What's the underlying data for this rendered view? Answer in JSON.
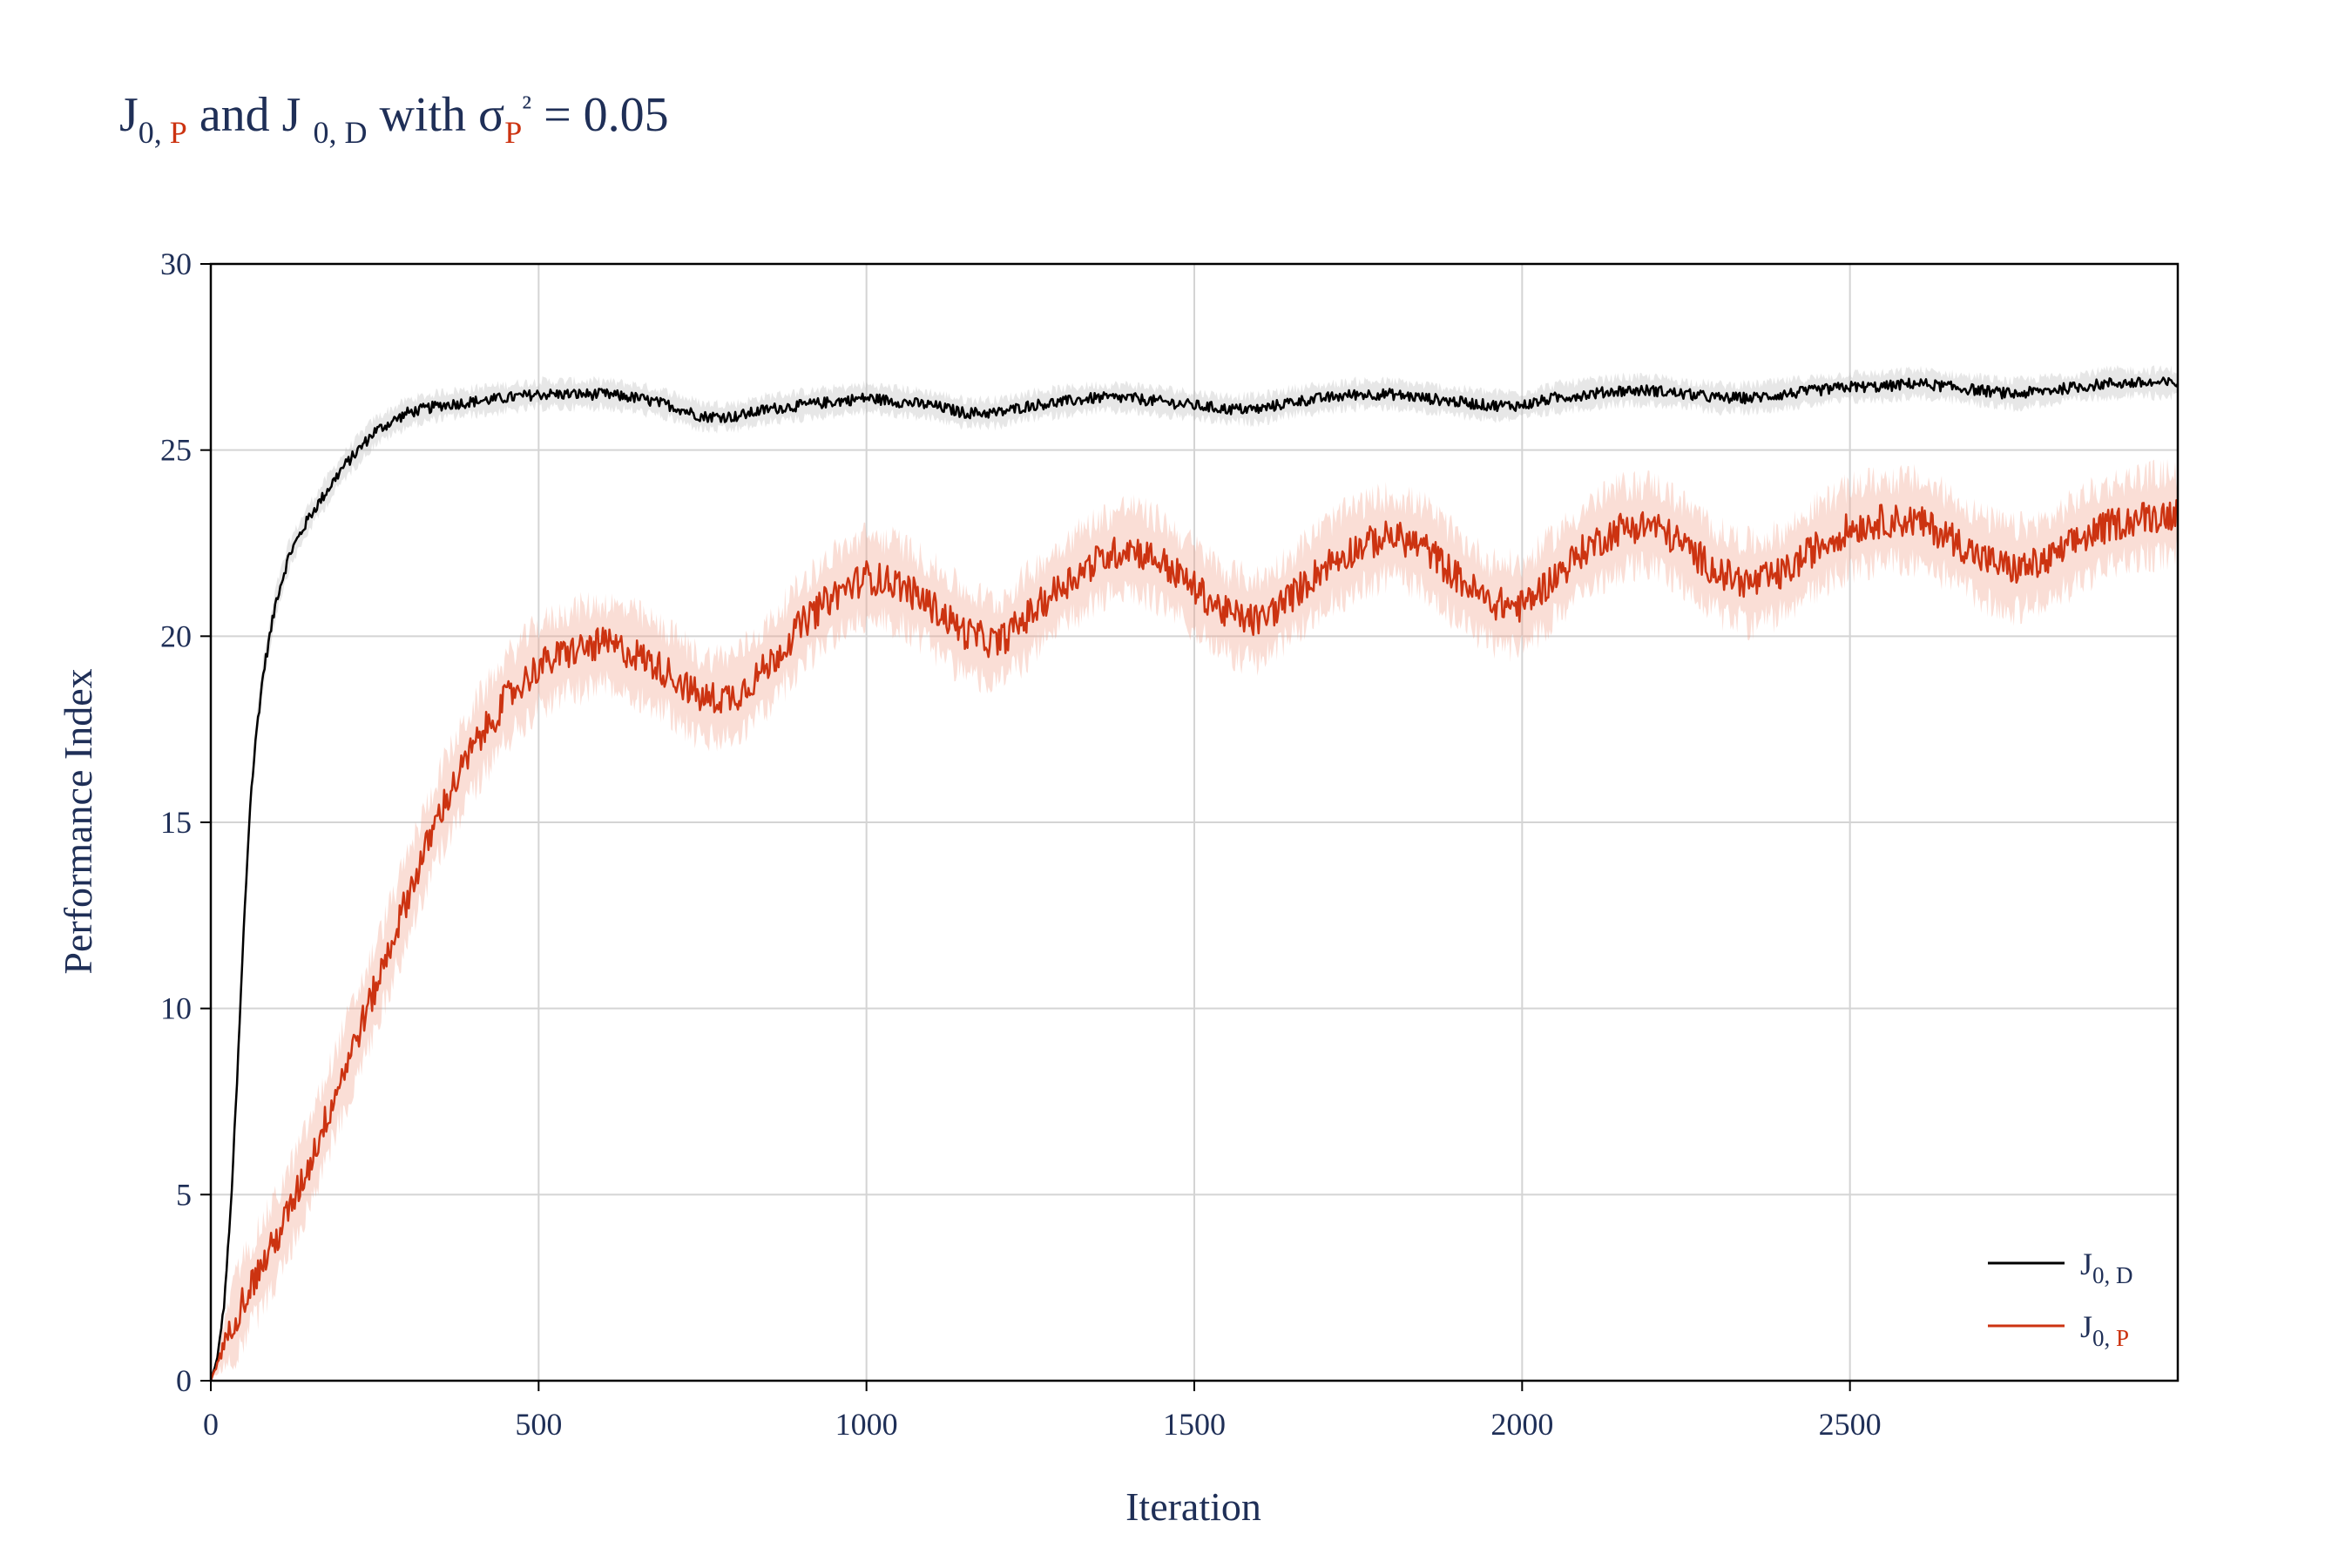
{
  "chart_data": {
    "type": "line",
    "title": {
      "parts": [
        {
          "text": "J",
          "sub": "0, ",
          "sub2": "P",
          "sub2_color": "#cc3311"
        },
        {
          "text": " and J ",
          "sub": "0, D",
          "sub2": "",
          "sub2_color": ""
        },
        {
          "text": "  with σ",
          "sub": "P",
          "sub_color": "#cc3311",
          "sup": "2"
        },
        {
          "text": " = 0.05"
        }
      ],
      "t1": "J",
      "t1_sub": "0, ",
      "t1_sub_p": "P",
      "t2": " and J ",
      "t2_sub": "0, D",
      "t3": "  with σ",
      "t3_sub": "P",
      "t3_sup": "²",
      "t4": " = 0.05"
    },
    "xlabel": "Iteration",
    "ylabel": "Performance Index",
    "xlim": [
      0,
      3000
    ],
    "ylim": [
      0,
      30
    ],
    "x_ticks": [
      0,
      500,
      1000,
      1500,
      2000,
      2500
    ],
    "y_ticks": [
      0,
      5,
      10,
      15,
      20,
      25,
      30
    ],
    "grid": true,
    "legend_position": "bottom-right",
    "series": [
      {
        "name": "J_{0, D}",
        "legend_main": "J",
        "legend_sub_a": "0, D",
        "legend_sub_b": "",
        "color": "#000000",
        "band_color": "#bbbbbb",
        "x": [
          0,
          10,
          20,
          30,
          40,
          50,
          60,
          70,
          80,
          100,
          120,
          150,
          200,
          250,
          300,
          350,
          400,
          450,
          500,
          550,
          600,
          650,
          700,
          750,
          800,
          850,
          900,
          950,
          1000,
          1050,
          1100,
          1150,
          1200,
          1250,
          1300,
          1350,
          1400,
          1450,
          1500,
          1550,
          1600,
          1650,
          1700,
          1750,
          1800,
          1850,
          1900,
          1950,
          2000,
          2050,
          2100,
          2150,
          2200,
          2250,
          2300,
          2350,
          2400,
          2450,
          2500,
          2550,
          2600,
          2650,
          2700,
          2750,
          2800,
          2850,
          2900,
          2950,
          3000
        ],
        "values": [
          0,
          0.6,
          2.0,
          4.5,
          8.0,
          12.0,
          15.5,
          17.5,
          19.0,
          21.0,
          22.2,
          23.2,
          24.5,
          25.5,
          26.0,
          26.2,
          26.3,
          26.4,
          26.5,
          26.5,
          26.5,
          26.4,
          26.2,
          25.9,
          25.9,
          26.1,
          26.2,
          26.3,
          26.4,
          26.3,
          26.2,
          26.0,
          26.0,
          26.2,
          26.3,
          26.4,
          26.4,
          26.3,
          26.2,
          26.1,
          26.1,
          26.3,
          26.4,
          26.5,
          26.5,
          26.4,
          26.3,
          26.2,
          26.2,
          26.4,
          26.5,
          26.6,
          26.6,
          26.5,
          26.4,
          26.4,
          26.5,
          26.6,
          26.7,
          26.7,
          26.8,
          26.7,
          26.6,
          26.5,
          26.6,
          26.7,
          26.8,
          26.8,
          26.8
        ],
        "noise": 0.15,
        "band": 0.35
      },
      {
        "name": "J_{0, P}",
        "legend_main": "J",
        "legend_sub_a": "0, ",
        "legend_sub_b": "P",
        "color": "#cc3311",
        "band_color": "#f2a08a",
        "x": [
          0,
          25,
          50,
          75,
          100,
          150,
          200,
          250,
          300,
          350,
          400,
          450,
          500,
          550,
          600,
          650,
          700,
          750,
          800,
          850,
          900,
          950,
          1000,
          1050,
          1100,
          1150,
          1200,
          1250,
          1300,
          1350,
          1400,
          1450,
          1500,
          1550,
          1600,
          1650,
          1700,
          1750,
          1800,
          1850,
          1900,
          1950,
          2000,
          2050,
          2100,
          2150,
          2200,
          2250,
          2300,
          2350,
          2400,
          2450,
          2500,
          2550,
          2600,
          2650,
          2700,
          2750,
          2800,
          2850,
          2900,
          2950,
          3000
        ],
        "values": [
          0,
          1.2,
          2.2,
          3.0,
          3.8,
          5.8,
          8.2,
          10.5,
          13.0,
          15.3,
          17.0,
          18.3,
          19.2,
          19.6,
          19.8,
          19.5,
          19.0,
          18.3,
          18.4,
          19.2,
          20.3,
          21.1,
          21.6,
          21.4,
          20.8,
          20.1,
          19.8,
          20.6,
          21.4,
          22.0,
          22.4,
          22.0,
          21.3,
          20.6,
          20.4,
          21.1,
          21.9,
          22.4,
          22.7,
          22.4,
          21.6,
          20.9,
          20.8,
          21.6,
          22.4,
          22.9,
          23.0,
          22.4,
          21.7,
          21.4,
          21.7,
          22.4,
          22.9,
          23.1,
          23.1,
          22.7,
          22.1,
          21.8,
          22.0,
          22.6,
          23.0,
          23.2,
          23.3
        ],
        "noise": 0.45,
        "band": 1.1
      }
    ]
  }
}
